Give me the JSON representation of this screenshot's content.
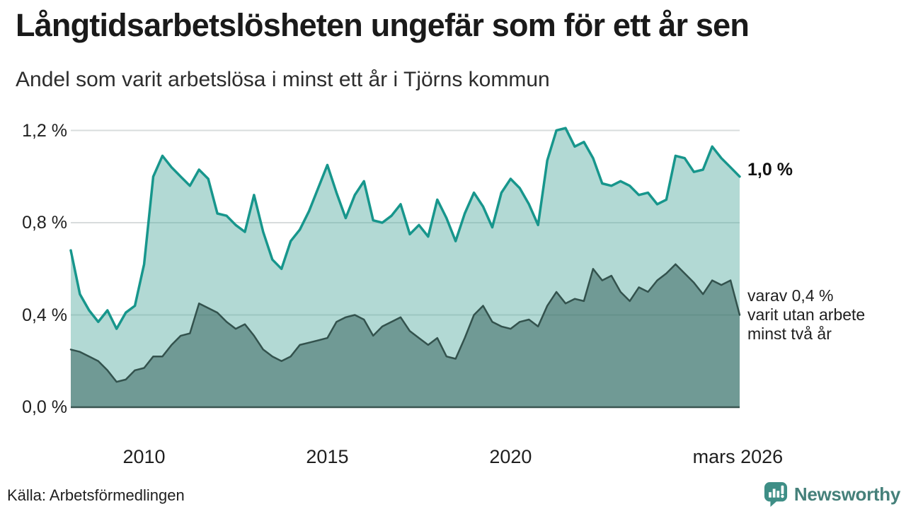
{
  "header": {
    "title": "Långtidsarbetslösheten ungefär som för ett år sen",
    "subtitle": "Andel som varit arbetslösa i minst ett år i Tjörns kommun"
  },
  "chart": {
    "y_ticks": [
      {
        "label": "1,2 %",
        "value": 1.2
      },
      {
        "label": "0,8 %",
        "value": 0.8
      },
      {
        "label": "0,4 %",
        "value": 0.4
      },
      {
        "label": "0,0 %",
        "value": 0.0
      }
    ],
    "x_ticks": [
      {
        "label": "2010",
        "year": 2010
      },
      {
        "label": "2015",
        "year": 2015
      },
      {
        "label": "2020",
        "year": 2020
      },
      {
        "label": "mars 2026",
        "year": 2026.2
      }
    ],
    "annotations": {
      "latest_total": {
        "label": "1,0 %",
        "value": 1.0
      },
      "secondary": {
        "value": 0.4,
        "lines": [
          "varav 0,4 %",
          "varit utan arbete",
          "minst två år"
        ]
      }
    },
    "colors": {
      "primary_line": "#17968C",
      "primary_fill": "#54ABA0",
      "secondary_line": "#33524D",
      "secondary_fill": "#2E5B56",
      "gridline": "#D8DCDD",
      "baseline": "#3A5551"
    }
  },
  "chart_data": {
    "type": "area",
    "title": "Långtidsarbetslösheten ungefär som för ett år sen",
    "subtitle": "Andel som varit arbetslösa i minst ett år i Tjörns kommun",
    "unit": "%",
    "x_unit": "decimal year (monthly share, 2008 – mars 2026)",
    "ylim": [
      0,
      1.2
    ],
    "y_tick_values": [
      0,
      0.4,
      0.8,
      1.2
    ],
    "grid": "horizontal",
    "legend_position": "right-annotations",
    "x": [
      2008,
      2008.25,
      2008.5,
      2008.75,
      2009,
      2009.25,
      2009.5,
      2009.75,
      2010,
      2010.25,
      2010.5,
      2010.75,
      2011,
      2011.25,
      2011.5,
      2011.75,
      2012,
      2012.25,
      2012.5,
      2012.75,
      2013,
      2013.25,
      2013.5,
      2013.75,
      2014,
      2014.25,
      2014.5,
      2014.75,
      2015,
      2015.25,
      2015.5,
      2015.75,
      2016,
      2016.25,
      2016.5,
      2016.75,
      2017,
      2017.25,
      2017.5,
      2017.75,
      2018,
      2018.25,
      2018.5,
      2018.75,
      2019,
      2019.25,
      2019.5,
      2019.75,
      2020,
      2020.25,
      2020.5,
      2020.75,
      2021,
      2021.25,
      2021.5,
      2021.75,
      2022,
      2022.25,
      2022.5,
      2022.75,
      2023,
      2023.25,
      2023.5,
      2023.75,
      2024,
      2024.25,
      2024.5,
      2024.75,
      2025,
      2025.25,
      2025.5,
      2025.75,
      2026,
      2026.25
    ],
    "series": [
      {
        "name": "Andel arbetslösa minst ett år",
        "color": "#17968C",
        "fill": "#54ABA0",
        "fill_opacity": 0.45,
        "stroke_width": 3.5,
        "values": [
          0.68,
          0.49,
          0.42,
          0.37,
          0.42,
          0.34,
          0.41,
          0.44,
          0.62,
          1.0,
          1.09,
          1.04,
          1.0,
          0.96,
          1.03,
          0.99,
          0.84,
          0.83,
          0.79,
          0.76,
          0.92,
          0.76,
          0.64,
          0.6,
          0.72,
          0.77,
          0.85,
          0.95,
          1.05,
          0.93,
          0.82,
          0.92,
          0.98,
          0.81,
          0.8,
          0.83,
          0.88,
          0.75,
          0.79,
          0.74,
          0.9,
          0.82,
          0.72,
          0.84,
          0.93,
          0.87,
          0.78,
          0.93,
          0.99,
          0.95,
          0.88,
          0.79,
          1.07,
          1.2,
          1.21,
          1.13,
          1.15,
          1.08,
          0.97,
          0.96,
          0.98,
          0.96,
          0.92,
          0.93,
          0.88,
          0.9,
          1.09,
          1.08,
          1.02,
          1.03,
          1.13,
          1.08,
          1.04,
          1.0
        ]
      },
      {
        "name": "varav utan arbete minst två år",
        "color": "#33524D",
        "fill": "#2E5B56",
        "fill_opacity": 0.5,
        "stroke_width": 2.5,
        "values": [
          0.25,
          0.24,
          0.22,
          0.2,
          0.16,
          0.11,
          0.12,
          0.16,
          0.17,
          0.22,
          0.22,
          0.27,
          0.31,
          0.32,
          0.45,
          0.43,
          0.41,
          0.37,
          0.34,
          0.36,
          0.31,
          0.25,
          0.22,
          0.2,
          0.22,
          0.27,
          0.28,
          0.29,
          0.3,
          0.37,
          0.39,
          0.4,
          0.38,
          0.31,
          0.35,
          0.37,
          0.39,
          0.33,
          0.3,
          0.27,
          0.3,
          0.22,
          0.21,
          0.3,
          0.4,
          0.44,
          0.37,
          0.35,
          0.34,
          0.37,
          0.38,
          0.35,
          0.44,
          0.5,
          0.45,
          0.47,
          0.46,
          0.6,
          0.55,
          0.57,
          0.5,
          0.46,
          0.52,
          0.5,
          0.55,
          0.58,
          0.62,
          0.58,
          0.54,
          0.49,
          0.55,
          0.53,
          0.55,
          0.4
        ]
      }
    ],
    "latest": {
      "total": 1.0,
      "two_years_plus": 0.4
    }
  },
  "footer": {
    "source": "Källa: Arbetsförmedlingen",
    "brand": "Newsworthy"
  }
}
